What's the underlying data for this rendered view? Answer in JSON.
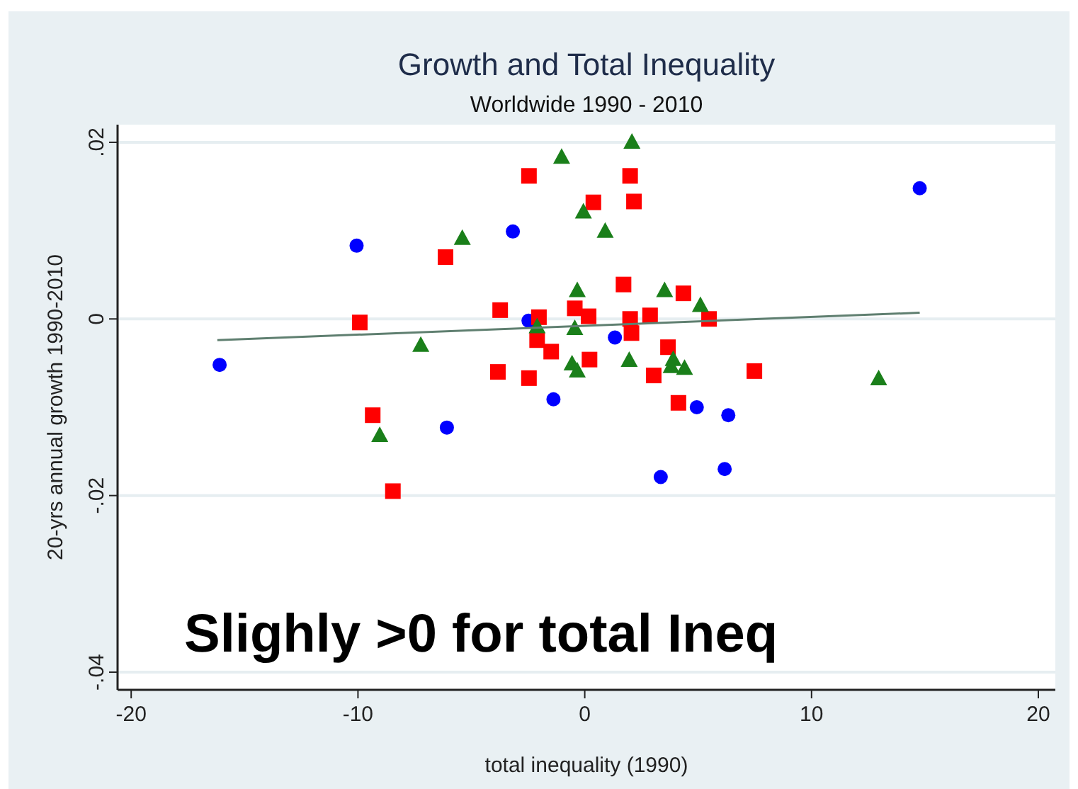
{
  "chart_data": {
    "type": "scatter",
    "title": "Growth and Total Inequality",
    "subtitle": "Worldwide 1990 - 2010",
    "xlabel": "total inequality (1990)",
    "ylabel": "20-yrs annual growth 1990-2010",
    "annotations": [
      "Slighly >0 for total Ineq"
    ],
    "xlim": [
      -20.6,
      20.75
    ],
    "xticks": [
      -20,
      -10,
      0,
      10,
      20
    ],
    "ylim": [
      -0.042,
      0.022
    ],
    "yticks": [
      {
        "value": 0.02,
        "label": ".02"
      },
      {
        "value": 0,
        "label": "0"
      },
      {
        "value": -0.02,
        "label": "-.02"
      },
      {
        "value": -0.04,
        "label": "-.04"
      }
    ],
    "grid": "y",
    "series": [
      {
        "color": "#0000ff",
        "marker": "circle",
        "x": [
          -3.17,
          -2.48,
          -1.38,
          14.77,
          4.94,
          6.33,
          3.35,
          6.17
        ],
        "values": [
          0.0099,
          -0.0002,
          -0.0091,
          0.0148,
          -0.01,
          -0.0109,
          -0.0179,
          -0.017
        ]
      },
      {
        "color": "#0000ff",
        "marker": "circle",
        "x": [
          -10.06,
          -16.1,
          -6.08,
          1.33
        ],
        "values": [
          0.0083,
          -0.0052,
          -0.0123,
          -0.0021
        ]
      },
      {
        "color": "#ff0000",
        "marker": "square",
        "x": [
          -2.46,
          -6.14,
          -3.73,
          -9.92,
          -2.02,
          -2.1,
          -1.48,
          -3.83,
          -2.46,
          -9.35,
          -8.46,
          -0.44,
          2.0,
          0.38,
          2.17,
          1.71,
          4.35,
          0.17,
          2.88,
          2.0,
          5.48,
          2.06,
          3.67,
          0.21,
          3.04,
          7.48,
          4.13
        ],
        "values": [
          0.0162,
          0.007,
          0.001,
          -0.0004,
          0.0002,
          -0.0024,
          -0.0037,
          -0.006,
          -0.0067,
          -0.0109,
          -0.0195,
          0.0012,
          0.0162,
          0.0132,
          0.0133,
          0.0039,
          0.0029,
          0.0003,
          0.0004,
          0.0,
          0.0,
          -0.0016,
          -0.0032,
          -0.0046,
          -0.0064,
          -0.0059,
          -0.0095
        ]
      },
      {
        "color": "#1a7f1a",
        "marker": "triangle",
        "x": [
          -1.02,
          -5.4,
          -7.23,
          -9.04,
          -0.06,
          -0.33,
          -2.1,
          -0.44,
          -0.56,
          -0.33,
          2.08,
          0.9,
          3.52,
          5.1,
          1.96,
          3.9,
          3.81,
          4.4,
          12.96
        ],
        "values": [
          0.0183,
          0.0091,
          -0.003,
          -0.0132,
          0.0121,
          0.0032,
          -0.0009,
          -0.0011,
          -0.0051,
          -0.0059,
          0.02,
          0.0099,
          0.0032,
          0.0015,
          -0.0047,
          -0.0046,
          -0.0054,
          -0.0056,
          -0.0068
        ]
      },
      {
        "type": "line",
        "color": "#5f7f70",
        "marker": "none",
        "x": [
          -16.2,
          14.77
        ],
        "values": [
          -0.0024,
          0.0007
        ]
      }
    ]
  }
}
